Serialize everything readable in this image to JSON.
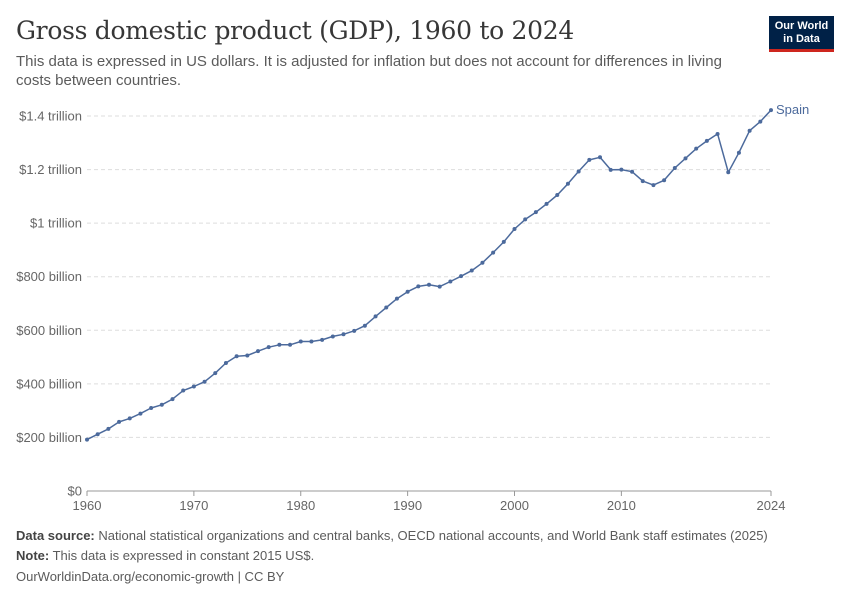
{
  "header": {
    "title": "Gross domestic product (GDP), 1960 to 2024",
    "subtitle": "This data is expressed in US dollars. It is adjusted for inflation but does not account for differences in living costs between countries.",
    "logo_line1": "Our World",
    "logo_line2": "in Data"
  },
  "footer": {
    "data_source_label": "Data source:",
    "data_source_text": "National statistical organizations and central banks, OECD national accounts, and World Bank staff estimates (2025)",
    "note_label": "Note:",
    "note_text": "This data is expressed in constant 2015 US$.",
    "source_url": "OurWorldinData.org/economic-growth | CC BY"
  },
  "colors": {
    "series": "#4c6a9c",
    "grid": "#dddddd",
    "axis": "#666666",
    "logo_bg": "#002147",
    "logo_accent": "#ce261e"
  },
  "chart_data": {
    "type": "line",
    "xlim": [
      1960,
      2024
    ],
    "ylim": [
      0,
      1400
    ],
    "x_ticks": [
      1960,
      1970,
      1980,
      1990,
      2000,
      2010,
      2024
    ],
    "y_ticks": [
      {
        "value": 0,
        "label": "$0"
      },
      {
        "value": 200,
        "label": "$200 billion"
      },
      {
        "value": 400,
        "label": "$400 billion"
      },
      {
        "value": 600,
        "label": "$600 billion"
      },
      {
        "value": 800,
        "label": "$800 billion"
      },
      {
        "value": 1000,
        "label": "$1 trillion"
      },
      {
        "value": 1200,
        "label": "$1.2 trillion"
      },
      {
        "value": 1400,
        "label": "$1.4 trillion"
      }
    ],
    "y_unit": "billion US$ (constant 2015)",
    "grid": true,
    "series": [
      {
        "name": "Spain",
        "x": [
          1960,
          1961,
          1962,
          1963,
          1964,
          1965,
          1966,
          1967,
          1968,
          1969,
          1970,
          1971,
          1972,
          1973,
          1974,
          1975,
          1976,
          1977,
          1978,
          1979,
          1980,
          1981,
          1982,
          1983,
          1984,
          1985,
          1986,
          1987,
          1988,
          1989,
          1990,
          1991,
          1992,
          1993,
          1994,
          1995,
          1996,
          1997,
          1998,
          1999,
          2000,
          2001,
          2002,
          2003,
          2004,
          2005,
          2006,
          2007,
          2008,
          2009,
          2010,
          2011,
          2012,
          2013,
          2014,
          2015,
          2016,
          2017,
          2018,
          2019,
          2020,
          2021,
          2022,
          2023,
          2024
        ],
        "values": [
          192,
          212,
          232,
          258,
          271,
          289,
          310,
          322,
          343,
          375,
          390,
          408,
          440,
          478,
          503,
          506,
          522,
          537,
          546,
          546,
          558,
          558,
          564,
          577,
          585,
          598,
          617,
          652,
          685,
          718,
          744,
          764,
          770,
          763,
          782,
          802,
          823,
          852,
          890,
          930,
          978,
          1014,
          1041,
          1072,
          1105,
          1147,
          1193,
          1236,
          1246,
          1199,
          1200,
          1192,
          1157,
          1142,
          1160,
          1206,
          1242,
          1278,
          1307,
          1333,
          1190,
          1263,
          1345,
          1379,
          1422
        ]
      }
    ]
  }
}
